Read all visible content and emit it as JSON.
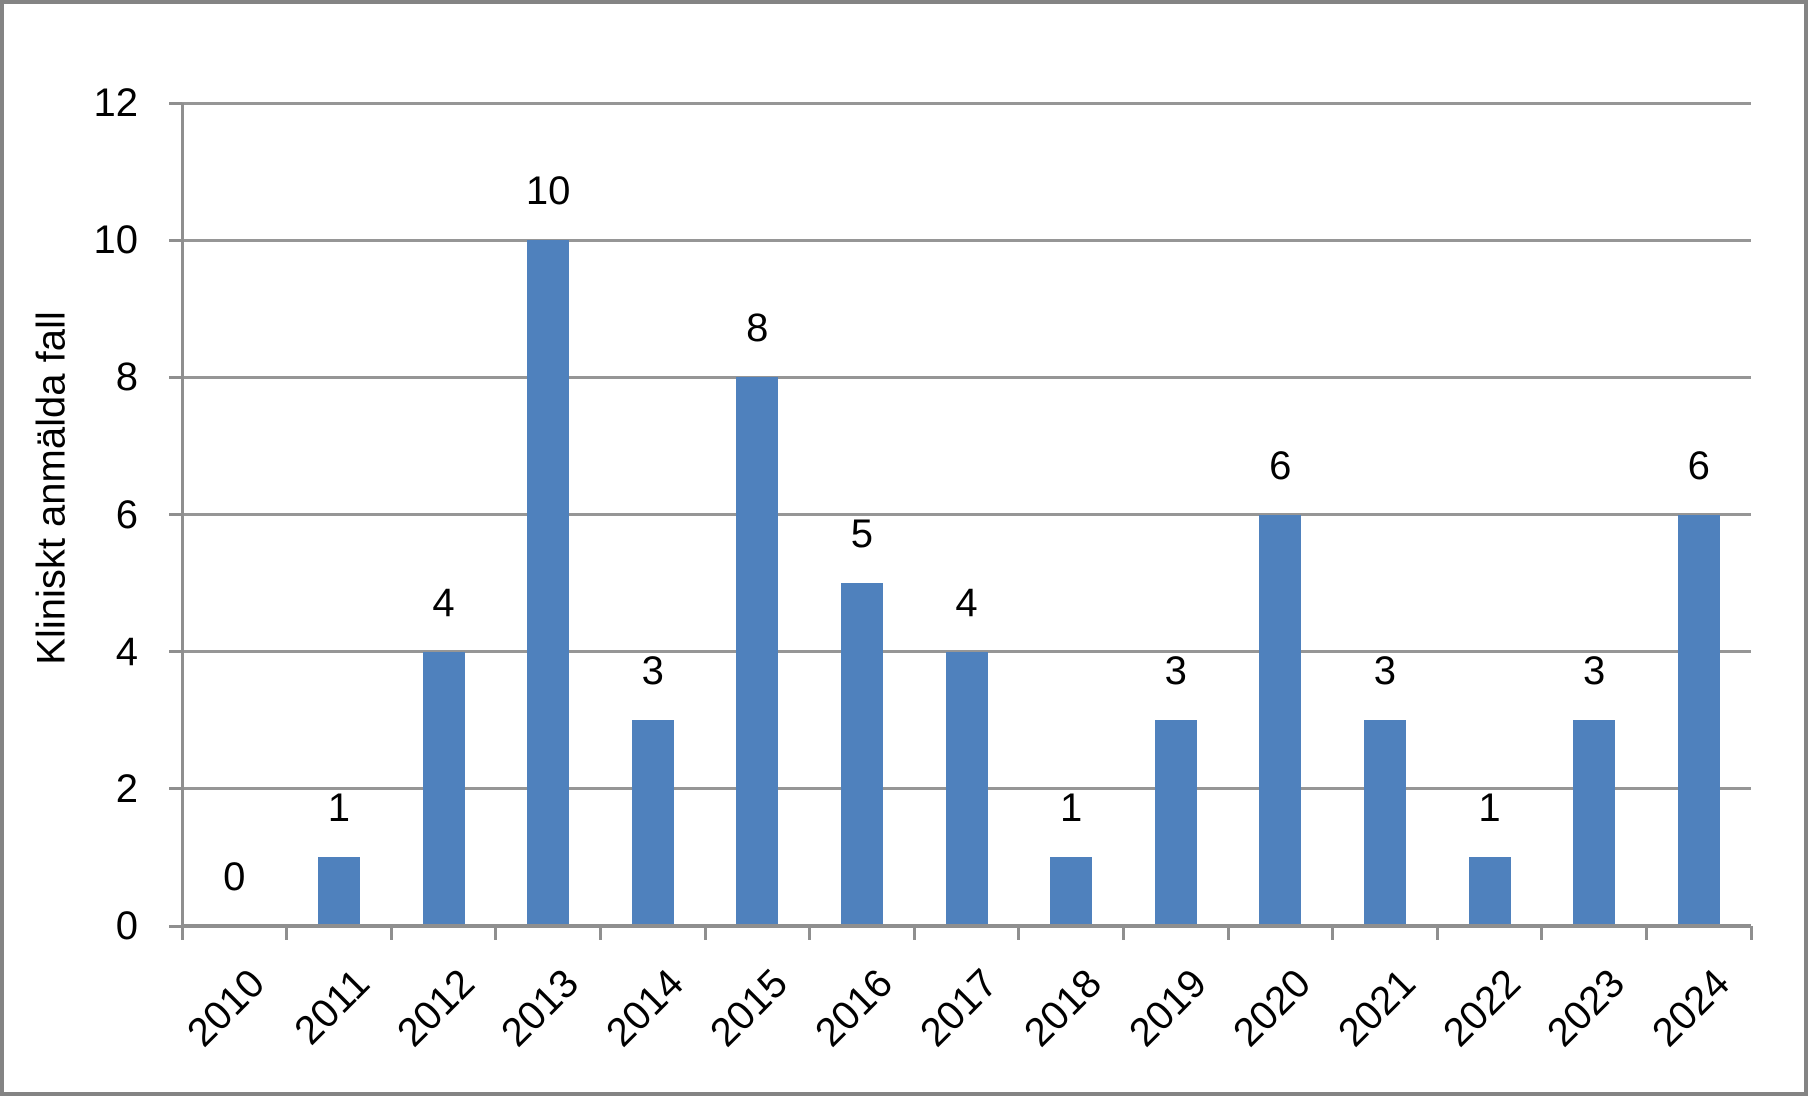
{
  "chart_data": {
    "type": "bar",
    "title": "",
    "xlabel": "",
    "ylabel": "Kliniskt anmälda fall",
    "categories": [
      "2010",
      "2011",
      "2012",
      "2013",
      "2014",
      "2015",
      "2016",
      "2017",
      "2018",
      "2019",
      "2020",
      "2021",
      "2022",
      "2023",
      "2024"
    ],
    "values": [
      0,
      1,
      4,
      10,
      3,
      8,
      5,
      4,
      1,
      3,
      6,
      3,
      1,
      3,
      6
    ],
    "data_labels_shown": true,
    "ylim": [
      0,
      12
    ],
    "yticks": [
      0,
      2,
      4,
      6,
      8,
      10,
      12
    ],
    "grid": true,
    "legend": false,
    "x_tick_label_rotation_deg": 45,
    "colors": {
      "bar": "#4F81BD",
      "gridline": "#969696",
      "axis": "#8F8F8F",
      "text": "#000000",
      "frame_border": "#848484",
      "background": "#FFFFFF"
    }
  }
}
